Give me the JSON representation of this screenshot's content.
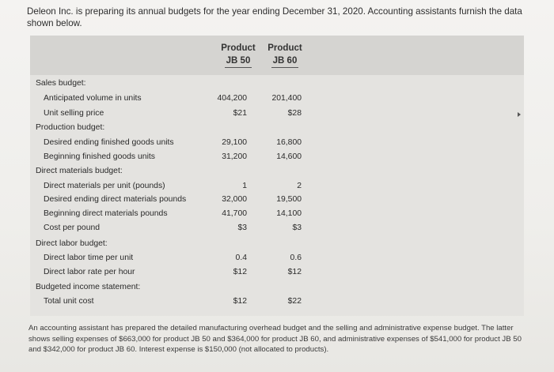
{
  "intro": "Deleon Inc. is preparing its annual budgets for the year ending December 31, 2020. Accounting assistants furnish the data shown below.",
  "columns": [
    {
      "line1": "Product",
      "line2": "JB 50"
    },
    {
      "line1": "Product",
      "line2": "JB 60"
    }
  ],
  "rows": [
    {
      "label": "Sales budget:",
      "level": 0,
      "jb50": "",
      "jb60": ""
    },
    {
      "label": "Anticipated volume in units",
      "level": 1,
      "jb50": "404,200",
      "jb60": "201,400"
    },
    {
      "label": "Unit selling price",
      "level": 1,
      "jb50": "$21",
      "jb60": "$28"
    },
    {
      "label": "Production budget:",
      "level": 0,
      "jb50": "",
      "jb60": ""
    },
    {
      "label": "Desired ending finished goods units",
      "level": 1,
      "jb50": "29,100",
      "jb60": "16,800"
    },
    {
      "label": "Beginning finished goods units",
      "level": 1,
      "jb50": "31,200",
      "jb60": "14,600"
    },
    {
      "label": "Direct materials budget:",
      "level": 0,
      "jb50": "",
      "jb60": ""
    },
    {
      "label": "Direct materials per unit (pounds)",
      "level": 1,
      "jb50": "1",
      "jb60": "2"
    },
    {
      "label": "Desired ending direct materials pounds",
      "level": 1,
      "jb50": "32,000",
      "jb60": "19,500"
    },
    {
      "label": "Beginning direct materials pounds",
      "level": 1,
      "jb50": "41,700",
      "jb60": "14,100"
    },
    {
      "label": "Cost per pound",
      "level": 1,
      "jb50": "$3",
      "jb60": "$3"
    },
    {
      "label": "Direct labor budget:",
      "level": 0,
      "jb50": "",
      "jb60": ""
    },
    {
      "label": "Direct labor time per unit",
      "level": 1,
      "jb50": "0.4",
      "jb60": "0.6"
    },
    {
      "label": "Direct labor rate per hour",
      "level": 1,
      "jb50": "$12",
      "jb60": "$12"
    },
    {
      "label": "Budgeted income statement:",
      "level": 0,
      "jb50": "",
      "jb60": ""
    },
    {
      "label": "Total unit cost",
      "level": 1,
      "jb50": "$12",
      "jb60": "$22"
    }
  ],
  "footer": "An accounting assistant has prepared the detailed manufacturing overhead budget and the selling and administrative expense budget. The latter shows selling expenses of $663,000 for product JB 50 and $364,000 for product JB 60, and administrative expenses of $541,000 for product JB 50 and $342,000 for product JB 60. Interest expense is $150,000 (not allocated to products)."
}
